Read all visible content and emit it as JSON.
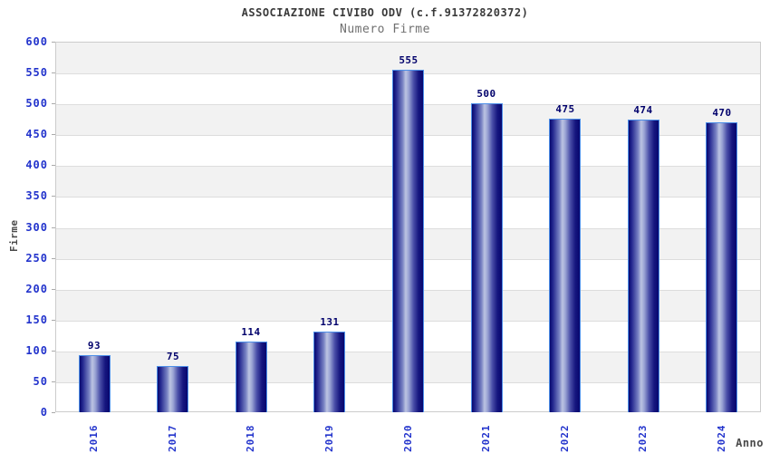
{
  "chart_data": {
    "type": "bar",
    "title": "ASSOCIAZIONE CIVIBO ODV (c.f.91372820372)",
    "subtitle": "Numero Firme",
    "categories": [
      "2016",
      "2017",
      "2018",
      "2019",
      "2020",
      "2021",
      "2022",
      "2023",
      "2024"
    ],
    "values": [
      93,
      75,
      114,
      131,
      555,
      500,
      475,
      474,
      470
    ],
    "xlabel": "Anno",
    "ylabel": "Firme",
    "ylim": [
      0,
      600
    ],
    "ytick_step": 50,
    "yticks": [
      600,
      550,
      500,
      450,
      400,
      350,
      300,
      250,
      200,
      150,
      100,
      50,
      0
    ],
    "grid": "horizontal-gridlines-with-alternating-bands",
    "legend": "none",
    "colors": {
      "bar_dark": "#07076e",
      "bar_light": "#bcc4e2",
      "bar_border": "#4d8fe8",
      "axis_text": "#2233cc",
      "value_label": "#00006b",
      "title_text": "#3a3a3a",
      "subtitle_text": "#707070",
      "axis_label_text": "#4a4a4a",
      "band_gray": "#f2f2f2",
      "gridline": "#dddddd",
      "plot_border": "#cccccc"
    }
  }
}
